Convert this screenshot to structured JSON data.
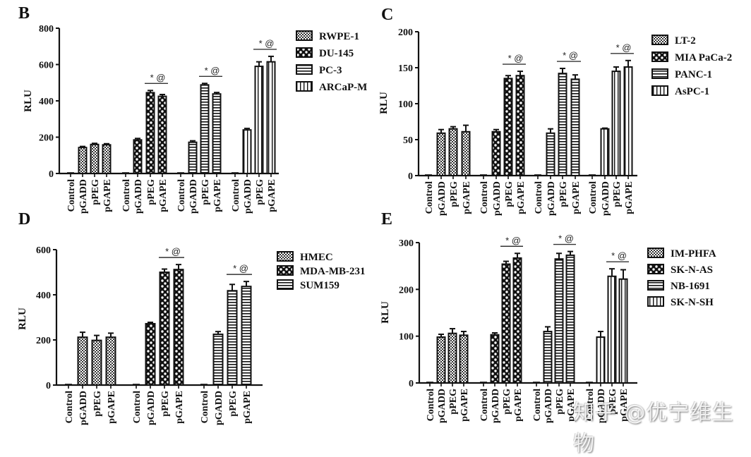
{
  "figure": {
    "watermark": "知乎 @优宁维生物"
  },
  "chart_data": [
    {
      "panel": "B",
      "type": "bar",
      "ylabel": "RLU",
      "ylim": [
        0,
        800
      ],
      "yticks": [
        0,
        200,
        400,
        600,
        800
      ],
      "categories": [
        "Control",
        "pGADD",
        "pPEG",
        "pGAPE"
      ],
      "legend_placement": "right",
      "significance_label": "* @",
      "groups": [
        {
          "name": "RWPE-1",
          "pattern": "dots",
          "values": [
            2,
            143,
            160,
            158
          ],
          "errors": [
            0,
            6,
            6,
            6
          ],
          "significance": false
        },
        {
          "name": "DU-145",
          "pattern": "checker",
          "values": [
            2,
            185,
            445,
            425
          ],
          "errors": [
            0,
            8,
            12,
            10
          ],
          "significance": true
        },
        {
          "name": "PC-3",
          "pattern": "hlines",
          "values": [
            2,
            172,
            488,
            438
          ],
          "errors": [
            0,
            8,
            8,
            8
          ],
          "significance": true
        },
        {
          "name": "ARCaP-M",
          "pattern": "vlines",
          "values": [
            2,
            240,
            590,
            615
          ],
          "errors": [
            0,
            8,
            25,
            30
          ],
          "significance": true
        }
      ]
    },
    {
      "panel": "C",
      "type": "bar",
      "ylabel": "RLU",
      "ylim": [
        0,
        200
      ],
      "yticks": [
        0,
        50,
        100,
        150,
        200
      ],
      "categories": [
        "Control",
        "pGADD",
        "pPEG",
        "pGAPE"
      ],
      "legend_placement": "right",
      "significance_label": "* @",
      "groups": [
        {
          "name": "LT-2",
          "pattern": "dots",
          "values": [
            0.5,
            59,
            65,
            61
          ],
          "errors": [
            0,
            5,
            3,
            9
          ],
          "significance": false
        },
        {
          "name": "MIA PaCa-2",
          "pattern": "checker",
          "values": [
            0.5,
            61,
            135,
            139
          ],
          "errors": [
            0,
            3,
            4,
            6
          ],
          "significance": true
        },
        {
          "name": "PANC-1",
          "pattern": "hlines",
          "values": [
            0.5,
            59,
            142,
            134
          ],
          "errors": [
            0,
            6,
            7,
            6
          ],
          "significance": true
        },
        {
          "name": "AsPC-1",
          "pattern": "vlines",
          "values": [
            0.5,
            65,
            145,
            151
          ],
          "errors": [
            0,
            1,
            6,
            9
          ],
          "significance": true
        }
      ]
    },
    {
      "panel": "D",
      "type": "bar",
      "ylabel": "RLU",
      "ylim": [
        0,
        600
      ],
      "yticks": [
        0,
        200,
        400,
        600
      ],
      "categories": [
        "Control",
        "pGADD",
        "pPEG",
        "pGAPE"
      ],
      "legend_placement": "right",
      "significance_label": "* @",
      "groups": [
        {
          "name": "HMEC",
          "pattern": "dots",
          "values": [
            0,
            212,
            198,
            212
          ],
          "errors": [
            0,
            22,
            22,
            18
          ],
          "significance": false
        },
        {
          "name": "MDA-MB-231",
          "pattern": "checker",
          "values": [
            0,
            272,
            500,
            512
          ],
          "errors": [
            0,
            6,
            14,
            22
          ],
          "significance": true
        },
        {
          "name": "SUM159",
          "pattern": "hlines",
          "values": [
            0,
            225,
            418,
            437
          ],
          "errors": [
            0,
            12,
            28,
            22
          ],
          "significance": true
        }
      ]
    },
    {
      "panel": "E",
      "type": "bar",
      "ylabel": "RLU",
      "ylim": [
        0,
        300
      ],
      "yticks": [
        0,
        100,
        200,
        300
      ],
      "categories": [
        "Control",
        "pGADD",
        "pPEG",
        "pGAPE"
      ],
      "legend_placement": "right",
      "significance_label": "* @",
      "groups": [
        {
          "name": "IM-PHFA",
          "pattern": "dots",
          "values": [
            1,
            98,
            106,
            102
          ],
          "errors": [
            0,
            6,
            10,
            8
          ],
          "significance": false
        },
        {
          "name": "SK-N-AS",
          "pattern": "checker",
          "values": [
            1,
            103,
            254,
            267
          ],
          "errors": [
            0,
            4,
            6,
            10
          ],
          "significance": true
        },
        {
          "name": "NB-1691",
          "pattern": "hlines",
          "values": [
            1,
            110,
            265,
            273
          ],
          "errors": [
            0,
            10,
            12,
            8
          ],
          "significance": true
        },
        {
          "name": "SK-N-SH",
          "pattern": "vlines",
          "values": [
            1,
            98,
            228,
            222
          ],
          "errors": [
            0,
            12,
            16,
            20
          ],
          "significance": true
        }
      ]
    }
  ]
}
